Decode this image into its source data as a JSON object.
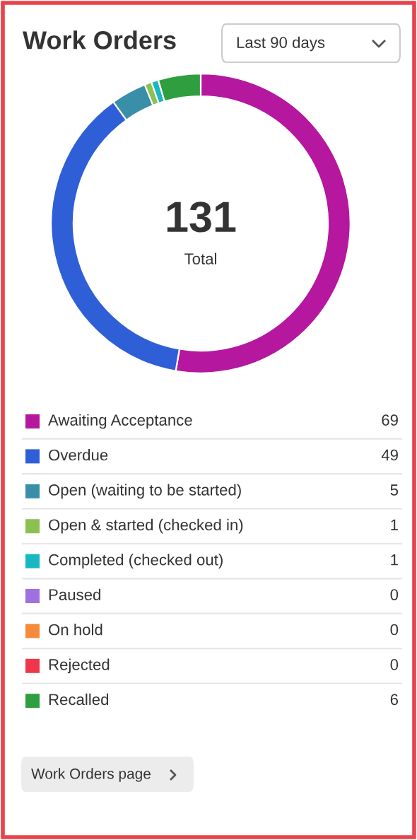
{
  "chart_data": {
    "type": "donut",
    "title": "Work Orders",
    "categories": [
      "Awaiting Acceptance",
      "Overdue",
      "Open (waiting to be started)",
      "Open & started (checked in)",
      "Completed (checked out)",
      "Paused",
      "On hold",
      "Rejected",
      "Recalled"
    ],
    "values": [
      69,
      49,
      5,
      1,
      1,
      0,
      0,
      0,
      6
    ],
    "colors": [
      "#b5179e",
      "#2f5fd6",
      "#3a8fa8",
      "#8cc152",
      "#17b8c0",
      "#a070e0",
      "#f58a3a",
      "#f0364a",
      "#2e9e3e"
    ],
    "value_labels": [
      "69",
      "49",
      "5",
      "1",
      "1",
      "0",
      "0",
      "0",
      "6"
    ],
    "legend": "bottom",
    "annotations": [
      "131",
      "Total",
      "Last 90 days",
      "Work Orders page"
    ]
  }
}
